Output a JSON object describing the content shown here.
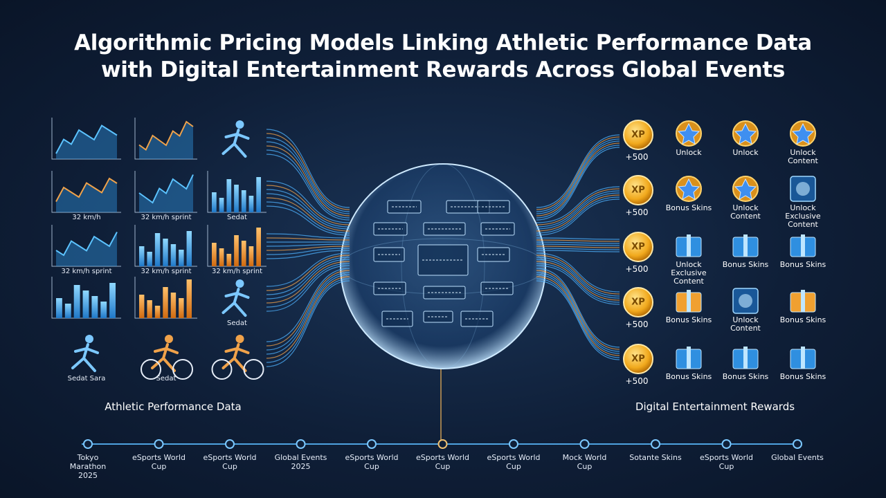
{
  "header": {
    "title_lines": [
      "Algorithmic Pricing Models Linking Athletic Performance Data",
      "with Digital Entertainment Rewards Across Global Events"
    ]
  },
  "left_panel": {
    "label": "Athletic Performance Data",
    "tile_rows": [
      [
        null,
        null,
        null
      ],
      [
        "32 km/h",
        "32 km/h sprint",
        "Sedat"
      ],
      [
        "32 km/h sprint",
        "32 km/h sprint",
        "32 km/h sprint"
      ],
      [
        null,
        null,
        "Sedat"
      ],
      [
        "Sedat Sara",
        "Sedat",
        null
      ]
    ]
  },
  "right_panel": {
    "label": "Digital Entertainment Rewards",
    "rows": [
      {
        "xp": "XP",
        "points": "+500",
        "items": [
          "Unlock",
          "Unlock",
          "Unlock Content"
        ]
      },
      {
        "xp": "XP",
        "points": "+500",
        "items": [
          "Bonus Skins",
          "Unlock Content",
          "Unlock Exclusive Content"
        ]
      },
      {
        "xp": "XP",
        "points": "+500",
        "items": [
          "Unlock Exclusive Content",
          "Bonus Skins",
          "Bonus Skins"
        ]
      },
      {
        "xp": "XP",
        "points": "+500",
        "items": [
          "Bonus Skins",
          "Unlock Content",
          "Bonus Skins"
        ]
      },
      {
        "xp": "XP",
        "points": "+500",
        "items": [
          "Bonus Skins",
          "Bonus Skins",
          "Bonus Skins"
        ]
      }
    ]
  },
  "timeline": {
    "events": [
      "Tokyo Marathon 2025",
      "eSports World Cup",
      "eSports World Cup",
      "Global Events 2025",
      "eSports World Cup",
      "eSports World Cup",
      "eSports World Cup",
      "Mock World Cup",
      "Sotante Skins",
      "eSports World Cup",
      "Global Events"
    ]
  }
}
